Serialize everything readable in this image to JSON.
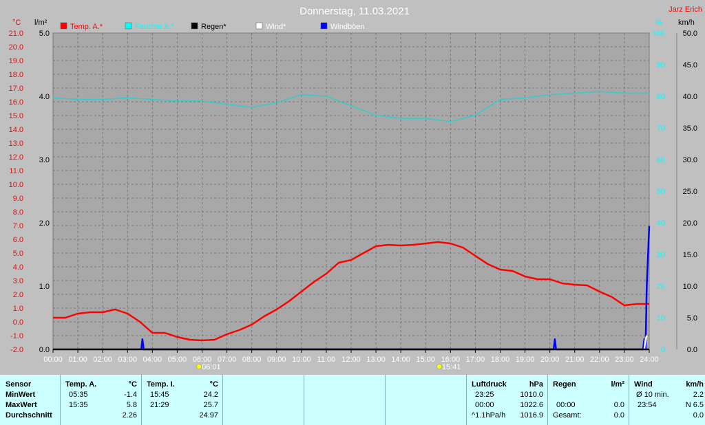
{
  "title": "Donnerstag, 11.03.2021",
  "author": "Jarz Erich",
  "units": {
    "temp": "°C",
    "rain": "l/m²",
    "humidity": "%",
    "wind": "km/h"
  },
  "legend": [
    {
      "label": "Temp. A.*",
      "color": "#ff0000",
      "text_color": "#ff0000"
    },
    {
      "label": "Feuchte A.*",
      "color": "#00ffff",
      "text_color": "#00ffff"
    },
    {
      "label": "Regen*",
      "color": "#000000",
      "text_color": "#000000"
    },
    {
      "label": "Wind*",
      "color": "#ffffff",
      "text_color": "#ffffff"
    },
    {
      "label": "Windböen",
      "color": "#0000ff",
      "text_color": "#ffffff"
    }
  ],
  "sun": {
    "rise": "06:01",
    "set": "15:41"
  },
  "chart_data": {
    "type": "line",
    "x_unit": "hours",
    "xlim": [
      0,
      24
    ],
    "x_ticks": [
      "00:00",
      "01:00",
      "02:00",
      "03:00",
      "04:00",
      "05:00",
      "06:00",
      "07:00",
      "08:00",
      "09:00",
      "10:00",
      "11:00",
      "12:00",
      "13:00",
      "14:00",
      "15:00",
      "16:00",
      "17:00",
      "18:00",
      "19:00",
      "20:00",
      "21:00",
      "22:00",
      "23:00",
      "24:00"
    ],
    "axes": {
      "temp": {
        "ylim": [
          -2.0,
          21.0
        ],
        "ticks": [
          "21.0",
          "20.0",
          "19.0",
          "18.0",
          "17.0",
          "16.0",
          "15.0",
          "14.0",
          "13.0",
          "12.0",
          "11.0",
          "10.0",
          "9.0",
          "8.0",
          "7.0",
          "6.0",
          "5.0",
          "4.0",
          "3.0",
          "2.0",
          "1.0",
          "0.0",
          "-1.0",
          "-2.0"
        ]
      },
      "rain": {
        "ylim": [
          0.0,
          5.0
        ],
        "ticks": [
          "5.0",
          "4.0",
          "3.0",
          "2.0",
          "1.0",
          "0.0"
        ]
      },
      "humidity": {
        "ylim": [
          0,
          100
        ],
        "ticks": [
          "100",
          "90",
          "80",
          "70",
          "60",
          "50",
          "40",
          "30",
          "20",
          "10",
          "0"
        ]
      },
      "wind": {
        "ylim": [
          0.0,
          50.0
        ],
        "ticks": [
          "50.0",
          "45.0",
          "40.0",
          "35.0",
          "30.0",
          "25.0",
          "20.0",
          "15.0",
          "10.0",
          "5.0",
          "0.0"
        ]
      }
    },
    "grid": true,
    "series": [
      {
        "name": "Temp. A.*",
        "axis": "temp",
        "color": "#ff0000",
        "points": [
          [
            0,
            0.3
          ],
          [
            0.5,
            0.3
          ],
          [
            1,
            0.6
          ],
          [
            1.5,
            0.7
          ],
          [
            2,
            0.7
          ],
          [
            2.5,
            0.9
          ],
          [
            3,
            0.6
          ],
          [
            3.5,
            0.0
          ],
          [
            4,
            -0.8
          ],
          [
            4.5,
            -0.8
          ],
          [
            5,
            -1.1
          ],
          [
            5.5,
            -1.3
          ],
          [
            6,
            -1.35
          ],
          [
            6.5,
            -1.3
          ],
          [
            7,
            -0.9
          ],
          [
            7.5,
            -0.6
          ],
          [
            8,
            -0.2
          ],
          [
            8.5,
            0.4
          ],
          [
            9,
            0.9
          ],
          [
            9.5,
            1.5
          ],
          [
            10,
            2.2
          ],
          [
            10.5,
            2.9
          ],
          [
            11,
            3.5
          ],
          [
            11.5,
            4.3
          ],
          [
            12,
            4.5
          ],
          [
            12.5,
            5.0
          ],
          [
            13,
            5.5
          ],
          [
            13.5,
            5.6
          ],
          [
            14,
            5.55
          ],
          [
            14.5,
            5.6
          ],
          [
            15,
            5.7
          ],
          [
            15.5,
            5.8
          ],
          [
            16,
            5.7
          ],
          [
            16.5,
            5.4
          ],
          [
            17,
            4.8
          ],
          [
            17.5,
            4.2
          ],
          [
            18,
            3.8
          ],
          [
            18.5,
            3.7
          ],
          [
            19,
            3.3
          ],
          [
            19.5,
            3.1
          ],
          [
            20,
            3.1
          ],
          [
            20.5,
            2.8
          ],
          [
            21,
            2.7
          ],
          [
            21.5,
            2.65
          ],
          [
            22,
            2.2
          ],
          [
            22.5,
            1.8
          ],
          [
            23,
            1.2
          ],
          [
            23.5,
            1.3
          ],
          [
            24,
            1.3
          ]
        ]
      },
      {
        "name": "Feuchte A.*",
        "axis": "humidity",
        "color": "#33cccc",
        "points": [
          [
            0,
            79.5
          ],
          [
            1,
            79
          ],
          [
            2,
            79
          ],
          [
            3,
            79.5
          ],
          [
            4,
            79
          ],
          [
            5,
            78.5
          ],
          [
            6,
            78.5
          ],
          [
            7,
            77.5
          ],
          [
            8,
            76.5
          ],
          [
            9,
            78
          ],
          [
            10,
            80.5
          ],
          [
            11,
            80
          ],
          [
            12,
            77
          ],
          [
            13,
            74
          ],
          [
            14,
            73
          ],
          [
            15,
            73
          ],
          [
            16,
            72
          ],
          [
            17,
            74
          ],
          [
            18,
            79
          ],
          [
            19,
            79.5
          ],
          [
            20,
            80.5
          ],
          [
            21,
            81
          ],
          [
            22,
            81.5
          ],
          [
            23,
            81
          ],
          [
            24,
            81
          ]
        ]
      },
      {
        "name": "Windböen",
        "axis": "wind",
        "color": "#0000ff",
        "points": [
          [
            3.55,
            0
          ],
          [
            3.6,
            1.6
          ],
          [
            3.65,
            0
          ],
          [
            20.15,
            0
          ],
          [
            20.2,
            1.6
          ],
          [
            20.25,
            0
          ],
          [
            23.75,
            0
          ],
          [
            23.8,
            1.6
          ],
          [
            23.85,
            0
          ],
          [
            23.9,
            10
          ],
          [
            24,
            19.5
          ]
        ]
      },
      {
        "name": "Wind*",
        "axis": "wind",
        "color": "#ffffff",
        "points": [
          [
            23.8,
            0
          ],
          [
            23.85,
            1.5
          ],
          [
            23.9,
            2.2
          ]
        ]
      },
      {
        "name": "Regen*",
        "axis": "rain",
        "color": "#000000",
        "points": [
          [
            0,
            0
          ],
          [
            24,
            0
          ]
        ]
      }
    ]
  },
  "table": {
    "sensor": {
      "header": "Sensor",
      "rows": [
        "MinWert",
        "MaxWert",
        "Durchschnitt"
      ]
    },
    "temp_a": {
      "header": "Temp. A.",
      "unit": "°C",
      "rows": [
        [
          "05:35",
          "-1.4"
        ],
        [
          "15:35",
          "5.8"
        ],
        [
          "",
          "2.26"
        ]
      ]
    },
    "temp_i": {
      "header": "Temp. I.",
      "unit": "°C",
      "rows": [
        [
          "15:45",
          "24.2"
        ],
        [
          "21:29",
          "25.7"
        ],
        [
          "",
          "24.97"
        ]
      ]
    },
    "luftdruck": {
      "header": "Luftdruck",
      "unit": "hPa",
      "rows": [
        [
          "23:25",
          "1010.0"
        ],
        [
          "00:00",
          "1022.6"
        ],
        [
          "^1.1hPa/h",
          "1016.9"
        ]
      ]
    },
    "regen": {
      "header": "Regen",
      "unit": "l/m²",
      "rows": [
        [
          "",
          ""
        ],
        [
          "00:00",
          "0.0"
        ],
        [
          "Gesamt:",
          "0.0"
        ]
      ]
    },
    "wind": {
      "header": "Wind",
      "unit": "km/h",
      "rows": [
        [
          "Ø 10 min.",
          "2.2"
        ],
        [
          "23:54",
          "N 6.5"
        ],
        [
          "",
          "0.0"
        ]
      ]
    }
  }
}
